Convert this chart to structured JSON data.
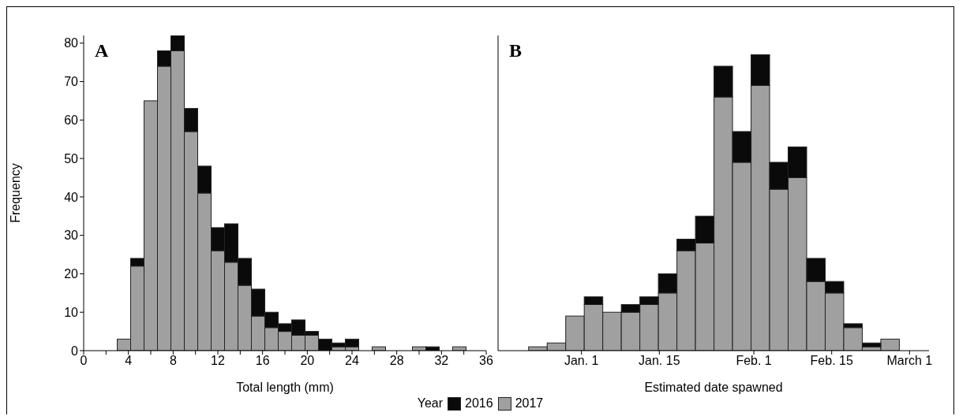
{
  "chart_data": [
    {
      "type": "bar",
      "title": "A",
      "xlabel": "Total length (mm)",
      "ylabel": "Frequency",
      "legend_title": "Year",
      "legend": "bottom",
      "stacked": true,
      "x": [
        1.2,
        2.4,
        3.6,
        4.8,
        6.0,
        7.2,
        8.4,
        9.6,
        10.8,
        12.0,
        13.2,
        14.4,
        15.6,
        16.8,
        18.0,
        19.2,
        20.4,
        21.6,
        22.8,
        24.0,
        25.2,
        26.4,
        27.6,
        28.8,
        30.0,
        31.2,
        32.4,
        33.6,
        34.8
      ],
      "series": [
        {
          "name": "2017",
          "color": "#a0a0a0",
          "values": [
            0,
            0,
            3,
            22,
            65,
            74,
            78,
            57,
            41,
            26,
            23,
            17,
            9,
            6,
            5,
            4,
            4,
            0,
            1,
            1,
            0,
            1,
            0,
            0,
            1,
            0,
            0,
            1,
            0
          ]
        },
        {
          "name": "2016",
          "color": "#0a0a0a",
          "values": [
            0,
            0,
            0,
            2,
            0,
            4,
            4,
            6,
            7,
            6,
            10,
            7,
            7,
            4,
            2,
            4,
            1,
            3,
            1,
            2,
            0,
            0,
            0,
            0,
            0,
            1,
            0,
            0,
            0
          ]
        }
      ],
      "xlim": [
        0,
        36
      ],
      "xticks": [
        0,
        {
          "value": 2,
          "label": null
        },
        4,
        {
          "value": 6,
          "label": null
        },
        8,
        {
          "value": 10,
          "label": null
        },
        12,
        {
          "value": 14,
          "label": null
        },
        16,
        {
          "value": 18,
          "label": null
        },
        20,
        {
          "value": 22,
          "label": null
        },
        24,
        {
          "value": 26,
          "label": null
        },
        28,
        {
          "value": 30,
          "label": null
        },
        32,
        {
          "value": 34,
          "label": null
        },
        36
      ],
      "ylim": [
        0,
        82
      ],
      "yticks": [
        0,
        10,
        20,
        30,
        40,
        50,
        60,
        70,
        80
      ]
    },
    {
      "type": "bar",
      "title": "B",
      "xlabel": "Estimated date spawned",
      "stacked": true,
      "tick_labels": "x",
      "x": [
        "2016-12-24T04:00",
        "2016-12-27T12:00",
        "2016-12-30T20:00",
        "2017-01-03T04:00",
        "2017-01-06T12:00",
        "2017-01-09T20:00",
        "2017-01-13T04:00",
        "2017-01-16T12:00",
        "2017-01-19T20:00",
        "2017-01-23T04:00",
        "2017-01-26T12:00",
        "2017-01-29T20:00",
        "2017-02-02T04:00",
        "2017-02-05T12:00",
        "2017-02-08T20:00",
        "2017-02-12T04:00",
        "2017-02-15T12:00",
        "2017-02-18T20:00",
        "2017-02-22T04:00",
        "2017-02-25T12:00"
      ],
      "series": [
        {
          "name": "2017",
          "color": "#a0a0a0",
          "values": [
            1,
            2,
            9,
            12,
            10,
            10,
            12,
            15,
            26,
            28,
            66,
            49,
            69,
            42,
            45,
            18,
            15,
            6,
            1,
            3
          ]
        },
        {
          "name": "2016",
          "color": "#0a0a0a",
          "values": [
            0,
            0,
            0,
            2,
            0,
            2,
            2,
            5,
            3,
            7,
            8,
            8,
            8,
            7,
            8,
            6,
            3,
            1,
            1,
            0
          ]
        }
      ],
      "xlim": [
        "2016-12-17",
        "2017-03-04T12:00"
      ],
      "xticks": [
        {
          "value": "2017-01-01",
          "label": "Jan. 1"
        },
        {
          "value": "2017-01-15",
          "label": "Jan. 15"
        },
        {
          "value": "2017-02-01",
          "label": "Feb. 1"
        },
        {
          "value": "2017-02-15",
          "label": "Feb. 15"
        },
        {
          "value": "2017-03-01",
          "label": "March 1"
        }
      ],
      "ylim": [
        0,
        82
      ]
    }
  ]
}
